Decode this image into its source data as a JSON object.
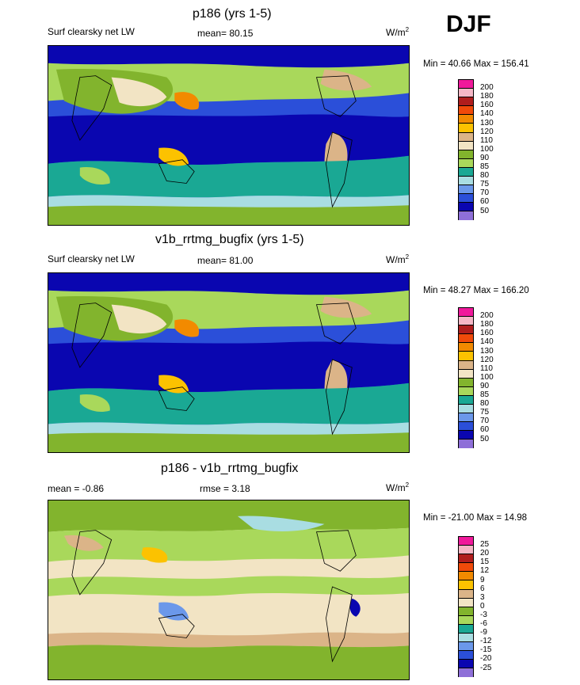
{
  "season": "DJF",
  "chart_data": [
    {
      "type": "heatmap",
      "title": "p186 (yrs 1-5)",
      "left_label": "Surf clearsky net LW",
      "center_label": "mean=  80.15",
      "units": "W/m",
      "units_sup": "2",
      "minmax": "Min =  40.66 Max = 156.41",
      "colorbar": {
        "labels": [
          "200",
          "180",
          "160",
          "140",
          "130",
          "120",
          "110",
          "100",
          "90",
          "85",
          "80",
          "75",
          "70",
          "60",
          "50"
        ],
        "colors": [
          "#f0199b",
          "#f5b7c6",
          "#b01d1d",
          "#f04a0a",
          "#f28a00",
          "#fcc200",
          "#dbb488",
          "#f2e4c4",
          "#82b42d",
          "#a9d85b",
          "#1aa894",
          "#a9dde2",
          "#6b98ea",
          "#2b4fd9",
          "#0a06b0",
          "#8e6fd8"
        ]
      }
    },
    {
      "type": "heatmap",
      "title": "v1b_rrtmg_bugfix (yrs 1-5)",
      "left_label": "Surf clearsky net LW",
      "center_label": "mean=  81.00",
      "units": "W/m",
      "units_sup": "2",
      "minmax": "Min =  48.27 Max = 166.20",
      "colorbar": {
        "labels": [
          "200",
          "180",
          "160",
          "140",
          "130",
          "120",
          "110",
          "100",
          "90",
          "85",
          "80",
          "75",
          "70",
          "60",
          "50"
        ],
        "colors": [
          "#f0199b",
          "#f5b7c6",
          "#b01d1d",
          "#f04a0a",
          "#f28a00",
          "#fcc200",
          "#dbb488",
          "#f2e4c4",
          "#82b42d",
          "#a9d85b",
          "#1aa894",
          "#a9dde2",
          "#6b98ea",
          "#2b4fd9",
          "#0a06b0",
          "#8e6fd8"
        ]
      }
    },
    {
      "type": "heatmap",
      "title": "p186 - v1b_rrtmg_bugfix",
      "left_label": "mean =  -0.86",
      "center_label": "rmse =    3.18",
      "units": "W/m",
      "units_sup": "2",
      "minmax": "Min = -21.00 Max =  14.98",
      "colorbar": {
        "labels": [
          "25",
          "20",
          "15",
          "12",
          "9",
          "6",
          "3",
          "0",
          "-3",
          "-6",
          "-9",
          "-12",
          "-15",
          "-20",
          "-25"
        ],
        "colors": [
          "#f0199b",
          "#f5b7c6",
          "#b01d1d",
          "#f04a0a",
          "#f28a00",
          "#fcc200",
          "#dbb488",
          "#f2e4c4",
          "#82b42d",
          "#a9d85b",
          "#1aa894",
          "#a9dde2",
          "#6b98ea",
          "#2b4fd9",
          "#0a06b0",
          "#8e6fd8"
        ]
      }
    }
  ]
}
